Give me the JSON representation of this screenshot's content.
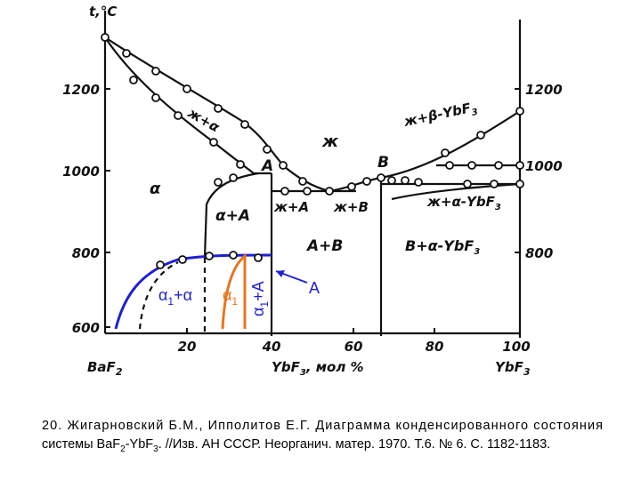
{
  "diagram": {
    "y_axis_title": "t,°C",
    "left_ticks": [
      "1200",
      "1000",
      "800",
      "600"
    ],
    "right_ticks": [
      "1200",
      "1000",
      "800"
    ],
    "x_ticks": [
      "20",
      "40",
      "60",
      "80",
      "100"
    ],
    "x_left": [
      "BaF",
      "2"
    ],
    "x_middle": [
      "YbF",
      "3",
      ", мол %"
    ],
    "x_right": [
      "YbF",
      "3"
    ],
    "regions": {
      "liquid_alpha": "ж+α",
      "liquid": "ж",
      "liquid_beta": [
        "ж+β-YbF",
        "3"
      ],
      "alpha": "α",
      "alpha_A": "α+A",
      "liquid_A": "ж+A",
      "liquid_B": "ж+B",
      "A_B": "A+B",
      "B_alpha": [
        "B+α-YbF",
        "3"
      ],
      "liquid_alpha_yb": [
        "ж+α-YbF",
        "3"
      ],
      "point_A": "A",
      "point_B": "B"
    },
    "annotations": {
      "a1_alpha": [
        "α",
        "1",
        "+α"
      ],
      "a1": [
        "α",
        "1"
      ],
      "a1_A": [
        "α",
        "1",
        "+A"
      ],
      "A": "A"
    }
  },
  "caption": {
    "line1": "20. Жигарновский Б.М., Ипполитов Е.Г. Диаграмма конденсированного состояния",
    "line2": [
      "системы BaF",
      "2",
      "-YbF",
      "3",
      ". //Изв. АН СССР. Неорганич. матер. 1970. Т.6. № 6. С. 1182-1183."
    ]
  }
}
